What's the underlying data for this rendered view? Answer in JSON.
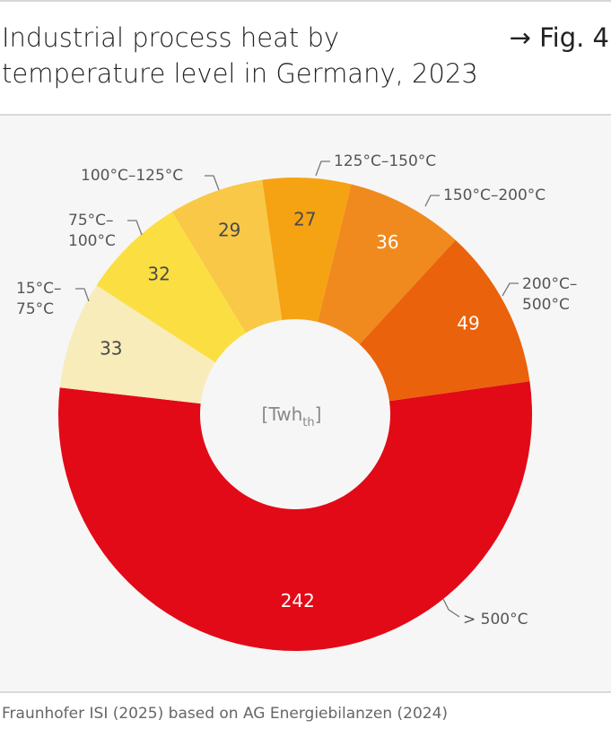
{
  "header": {
    "title_line1": "Industrial process heat by",
    "title_line2": "temperature level in Germany, 2023",
    "figure_ref": "→ Fig. 4"
  },
  "chart_data": {
    "type": "pie",
    "variant": "donut",
    "unit_label": "[Twh",
    "unit_sub": "th",
    "unit_close": "]",
    "slices": [
      {
        "label": "> 500°C",
        "value": 242,
        "color": "#e20a17",
        "text_color": "#ffffff"
      },
      {
        "label": "15°C–75°C",
        "label_l1": "15°C–",
        "label_l2": "75°C",
        "value": 33,
        "color": "#f8ecbb",
        "text_color": "#4a4a4a"
      },
      {
        "label": "75°C–100°C",
        "label_l1": "75°C–",
        "label_l2": "100°C",
        "value": 32,
        "color": "#fbdf42",
        "text_color": "#4a4a4a"
      },
      {
        "label": "100°C–125°C",
        "value": 29,
        "color": "#f9c846",
        "text_color": "#4a4a4a"
      },
      {
        "label": "125°C–150°C",
        "value": 27,
        "color": "#f5a313",
        "text_color": "#4a4a4a"
      },
      {
        "label": "150°C–200°C",
        "value": 36,
        "color": "#f08a1e",
        "text_color": "#ffffff"
      },
      {
        "label": "200°C–500°C",
        "label_l1": "200°C–",
        "label_l2": "500°C",
        "value": 49,
        "color": "#ea620b",
        "text_color": "#ffffff"
      }
    ]
  },
  "footer": {
    "source": "Fraunhofer ISI (2025) based on AG Energiebilanzen (2024)"
  }
}
